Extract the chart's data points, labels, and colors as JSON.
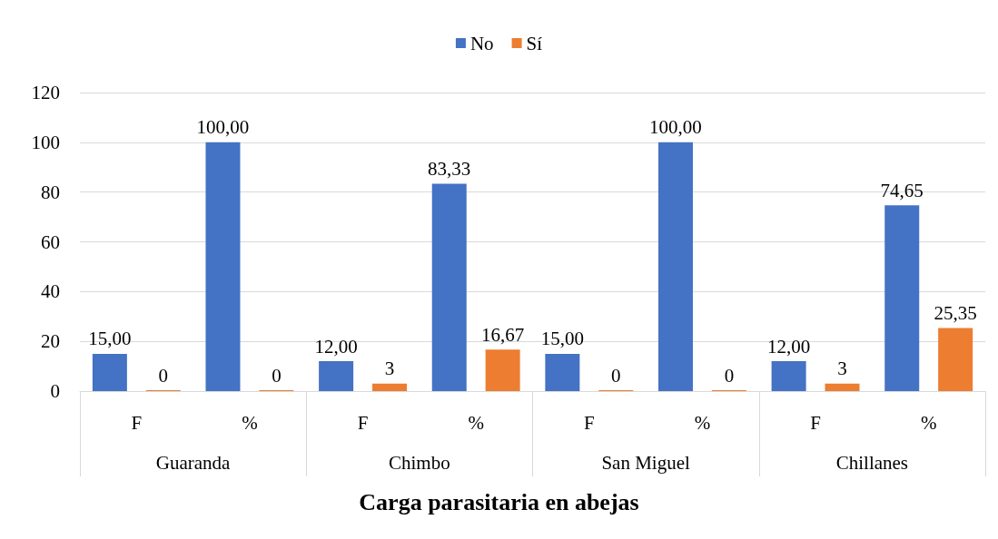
{
  "chart_data": {
    "type": "bar",
    "xlabel": "Carga parasitaria en abejas",
    "categories": [
      "F",
      "%",
      "F",
      "%",
      "F",
      "%",
      "F",
      "%"
    ],
    "annotations": [
      "Guaranda",
      "Chimbo",
      "San Miguel",
      "Chillanes"
    ],
    "series": [
      {
        "name": "No",
        "color": "#4472c4",
        "values": [
          15,
          100,
          12,
          83.33,
          15,
          100,
          12,
          74.65
        ],
        "value_labels": [
          "15,00",
          "100,00",
          "12,00",
          "83,33",
          "15,00",
          "100,00",
          "12,00",
          "74,65"
        ]
      },
      {
        "name": "Sí",
        "color": "#ed7d31",
        "values": [
          0,
          0,
          3,
          16.67,
          0,
          0,
          3,
          25.35
        ],
        "value_labels": [
          "0",
          "0",
          "3",
          "16,67",
          "0",
          "0",
          "3",
          "25,35"
        ]
      }
    ],
    "ylim": [
      0,
      120
    ],
    "yticks": [
      0,
      20,
      40,
      60,
      80,
      100,
      120
    ],
    "grid": "y",
    "legend": "top"
  }
}
